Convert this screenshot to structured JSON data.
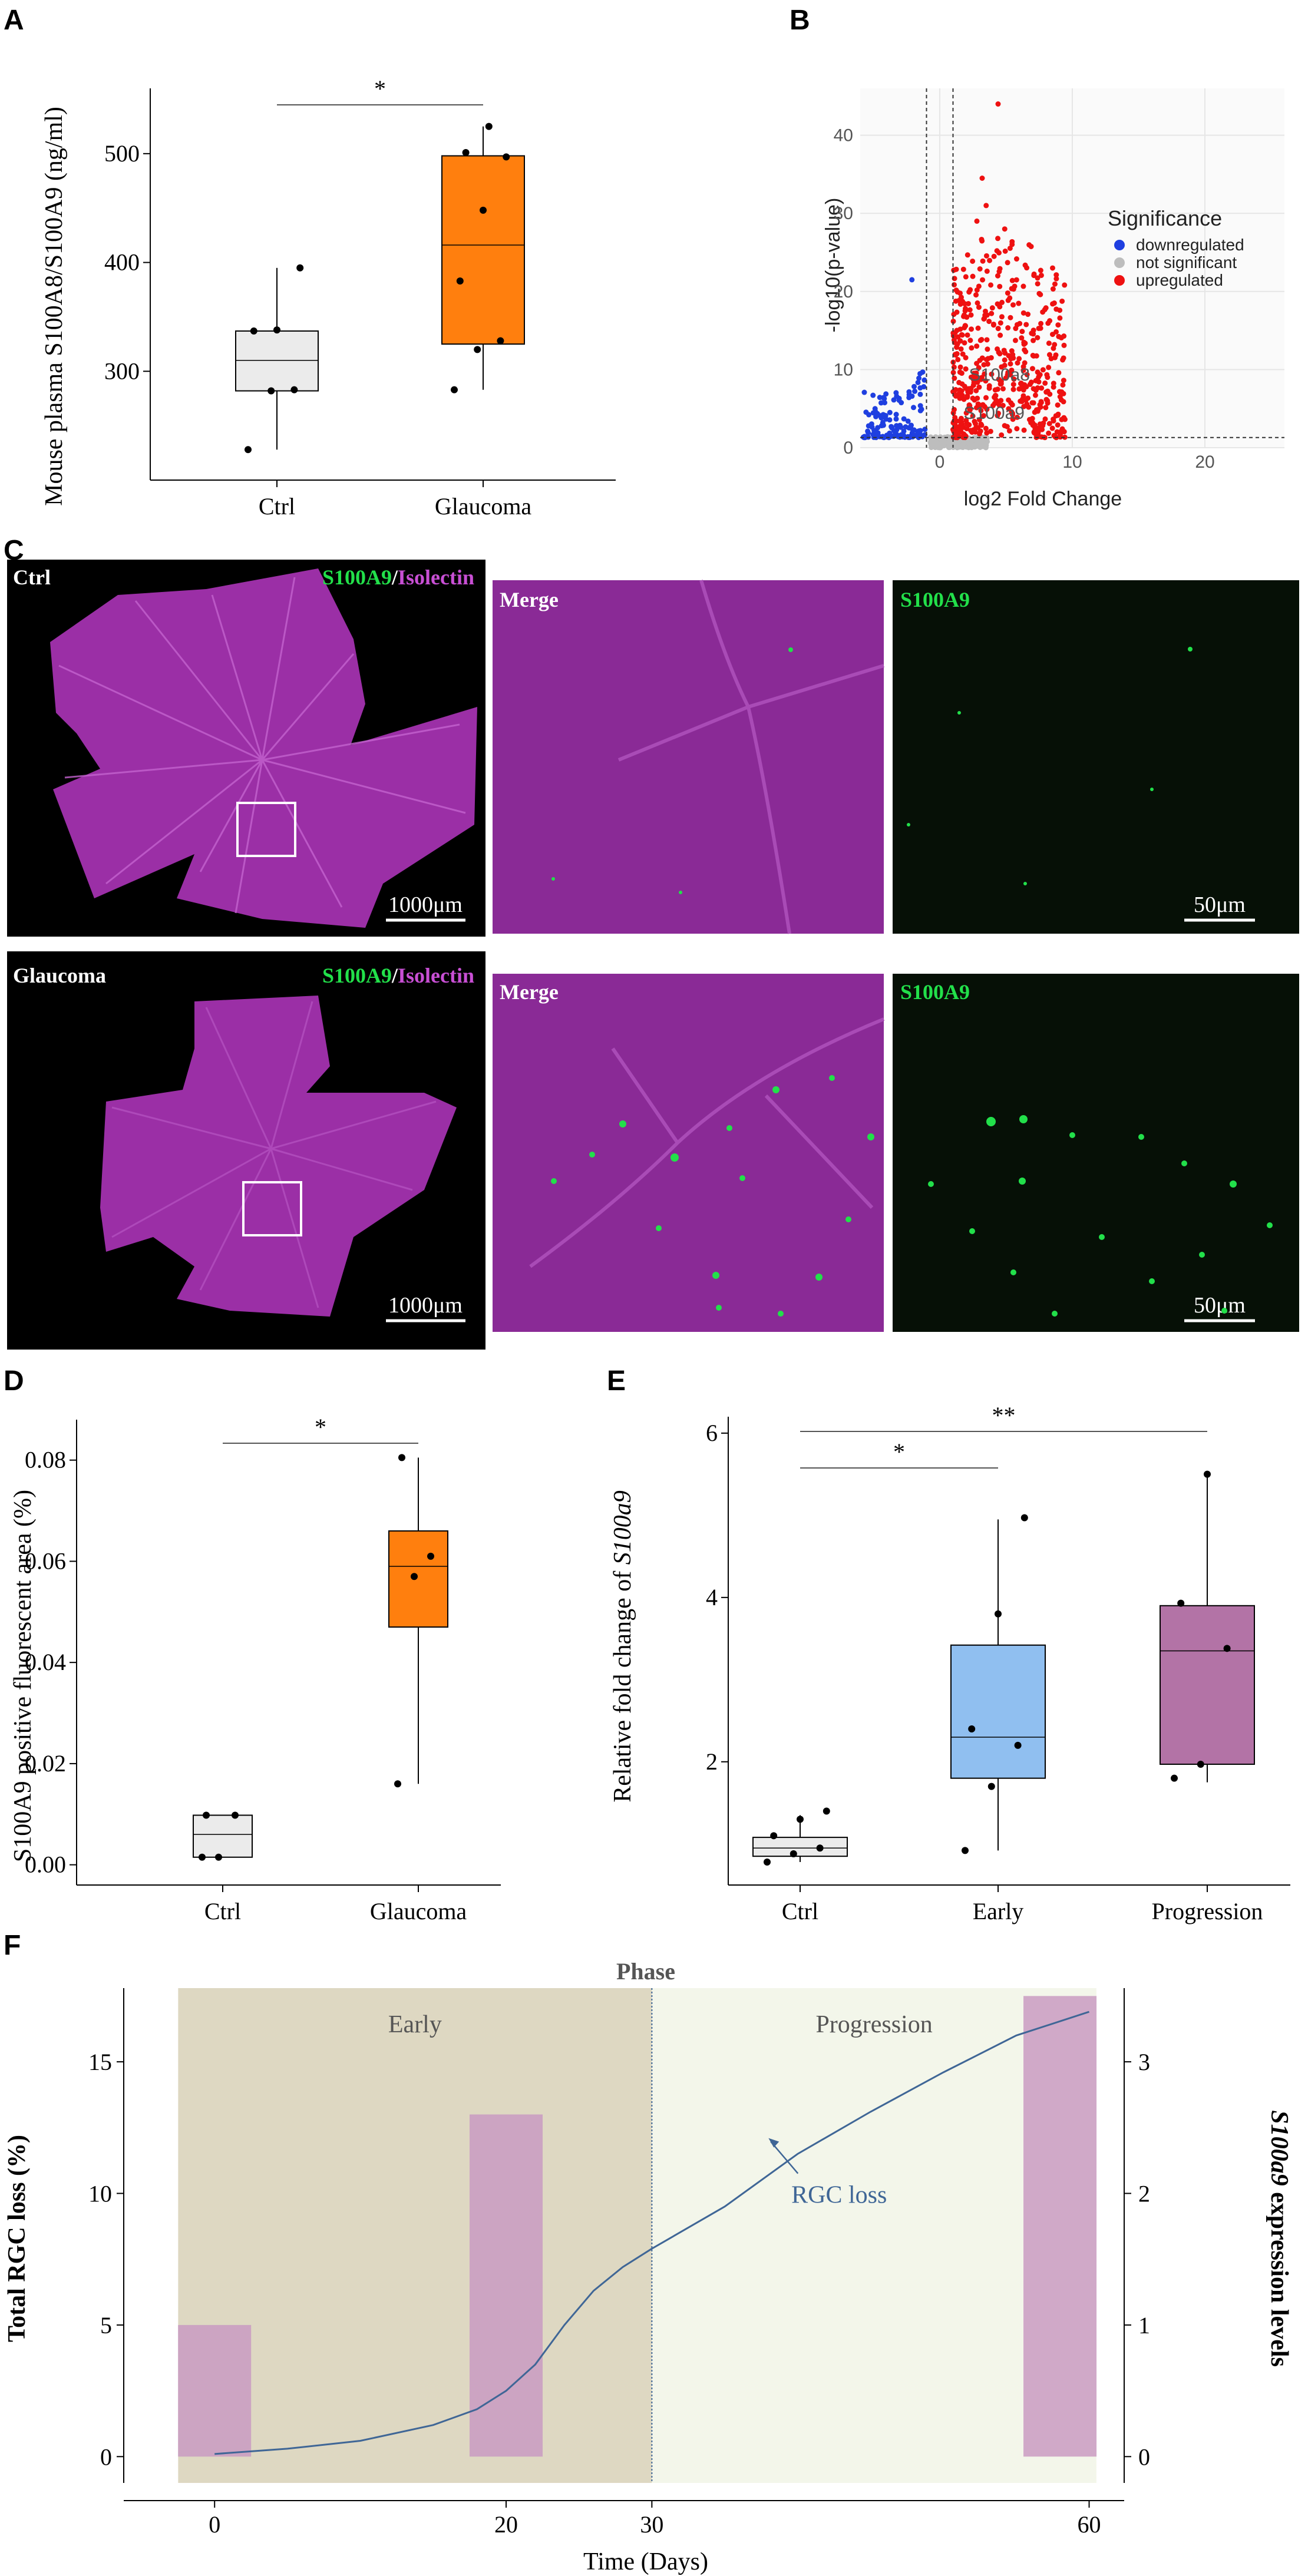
{
  "panel_labels": {
    "a": "A",
    "b": "B",
    "c": "C",
    "d": "D",
    "e": "E",
    "f": "F"
  },
  "panel_c": {
    "ctrl_label": "Ctrl",
    "glaucoma_label": "Glaucoma",
    "stain_s100a9": "S100A9",
    "stain_sep": "/",
    "stain_isolectin": "Isolectin",
    "merge": "Merge",
    "s100a9": "S100A9",
    "scale_big": "1000μm",
    "scale_small": "50μm",
    "colors": {
      "tissue": "#9b2fa6",
      "tissue_dark": "#7e1f88",
      "green": "#22e04a",
      "bg": "#000000",
      "green_bg": "#061006"
    }
  },
  "chart_data": [
    {
      "id": "A",
      "type": "box",
      "categories": [
        "Ctrl",
        "Glaucoma"
      ],
      "ylabel": "Mouse plasma S100A8/S100A9 (ng/ml)",
      "ylim": [
        200,
        560
      ],
      "yticks": [
        300,
        400,
        500
      ],
      "boxes": [
        {
          "category": "Ctrl",
          "min": 228,
          "q1": 282,
          "median": 310,
          "q3": 337,
          "max": 395,
          "fill": "#ebebeb",
          "points": [
            228,
            282,
            283,
            337,
            338,
            395
          ]
        },
        {
          "category": "Glaucoma",
          "min": 283,
          "q1": 325,
          "median": 416,
          "q3": 498,
          "max": 525,
          "fill": "#ff7f0e",
          "points": [
            283,
            320,
            328,
            383,
            448,
            497,
            501,
            525
          ]
        }
      ],
      "significance": [
        {
          "from": "Ctrl",
          "to": "Glaucoma",
          "label": "*"
        }
      ]
    },
    {
      "id": "B",
      "type": "scatter",
      "xlabel": "log2 Fold Change",
      "ylabel": "-log10(p-value)",
      "xlim": [
        -6,
        26
      ],
      "ylim": [
        0,
        46
      ],
      "xticks": [
        0,
        10,
        20
      ],
      "yticks": [
        0,
        10,
        20,
        30,
        40
      ],
      "vlines": [
        -1,
        1
      ],
      "hline": 1.3,
      "legend": {
        "title": "Significance",
        "entries": [
          {
            "label": "downregulated",
            "color": "#1f3fe0"
          },
          {
            "label": "not significant",
            "color": "#bdbdbd"
          },
          {
            "label": "upregulated",
            "color": "#ee1111"
          }
        ]
      },
      "annotations": [
        {
          "label": "S100a8",
          "x": 2.2,
          "y": 8.6
        },
        {
          "label": "S100a9",
          "x": 1.8,
          "y": 3.7
        }
      ]
    },
    {
      "id": "D",
      "type": "box",
      "categories": [
        "Ctrl",
        "Glaucoma"
      ],
      "ylabel": "S100A9 positive fluorescent area (%)",
      "ylim": [
        -0.004,
        0.088
      ],
      "yticks": [
        0.0,
        0.02,
        0.04,
        0.06,
        0.08
      ],
      "ytick_labels": [
        "0.00",
        "0.02",
        "0.04",
        "0.06",
        "0.08"
      ],
      "boxes": [
        {
          "category": "Ctrl",
          "min": 0.0015,
          "q1": 0.0015,
          "median": 0.006,
          "q3": 0.0098,
          "max": 0.0098,
          "fill": "#ebebeb",
          "points": [
            0.0015,
            0.0015,
            0.0098,
            0.0098
          ]
        },
        {
          "category": "Glaucoma",
          "min": 0.016,
          "q1": 0.047,
          "median": 0.059,
          "q3": 0.066,
          "max": 0.0805,
          "fill": "#ff7f0e",
          "points": [
            0.016,
            0.057,
            0.061,
            0.0805
          ]
        }
      ],
      "significance": [
        {
          "from": "Ctrl",
          "to": "Glaucoma",
          "label": "*"
        }
      ]
    },
    {
      "id": "E",
      "type": "box",
      "categories": [
        "Ctrl",
        "Early",
        "Progression"
      ],
      "ylabel_prefix": "Relative fold change of ",
      "ylabel_gene": "S100a9",
      "ylim": [
        0.5,
        6.2
      ],
      "yticks": [
        2,
        4,
        6
      ],
      "boxes": [
        {
          "category": "Ctrl",
          "min": 0.78,
          "q1": 0.85,
          "median": 0.95,
          "q3": 1.08,
          "max": 1.35,
          "fill": "#ebebeb",
          "points": [
            0.78,
            0.88,
            0.95,
            1.1,
            1.3,
            1.4
          ]
        },
        {
          "category": "Early",
          "min": 0.92,
          "q1": 1.8,
          "median": 2.3,
          "q3": 3.42,
          "max": 4.95,
          "fill": "#90bff0",
          "points": [
            0.92,
            1.7,
            2.2,
            2.4,
            3.8,
            4.97
          ]
        },
        {
          "category": "Progression",
          "min": 1.75,
          "q1": 1.97,
          "median": 3.35,
          "q3": 3.9,
          "max": 5.5,
          "fill": "#b373a6",
          "points": [
            1.8,
            1.97,
            3.38,
            3.93,
            5.5
          ]
        }
      ],
      "significance": [
        {
          "from": "Ctrl",
          "to": "Early",
          "label": "*"
        },
        {
          "from": "Ctrl",
          "to": "Progression",
          "label": "**"
        }
      ]
    },
    {
      "id": "F",
      "type": "line+bar",
      "title": "Phase",
      "xlabel": "Time (Days)",
      "ylabel_left": "Total RGC loss (%)",
      "ylabel_right_gene": "S100a9",
      "ylabel_right_suffix": " expression levels",
      "xlim": [
        -3,
        62
      ],
      "ylim_left": [
        -1,
        17.8
      ],
      "ylim_right": [
        -0.2,
        3.56
      ],
      "xticks": [
        0,
        20,
        30,
        60
      ],
      "yticks_left": [
        0,
        5,
        10,
        15
      ],
      "yticks_right": [
        0,
        1,
        2,
        3
      ],
      "phases": [
        {
          "label": "Early",
          "from": -2.5,
          "to": 30,
          "color": "#ded8c2"
        },
        {
          "label": "Progression",
          "from": 30,
          "to": 60.5,
          "color": "#f3f6ea"
        }
      ],
      "phase_divider": 30,
      "bars": [
        {
          "x": 0,
          "value": 1.0
        },
        {
          "x": 20,
          "value": 2.6
        },
        {
          "x": 58,
          "value": 3.5
        }
      ],
      "bar_color": "#c99bc2",
      "line": {
        "name": "RGC loss",
        "color": "#3f6696",
        "x": [
          0,
          5,
          10,
          15,
          18,
          20,
          22,
          24,
          26,
          28,
          30,
          35,
          40,
          45,
          50,
          55,
          60
        ],
        "y": [
          0.1,
          0.3,
          0.6,
          1.2,
          1.8,
          2.5,
          3.5,
          5.0,
          6.3,
          7.2,
          7.9,
          9.5,
          11.5,
          13.1,
          14.6,
          16.0,
          16.9
        ]
      },
      "line_annotation": {
        "label": "RGC loss",
        "x": 38,
        "y": 12.1
      }
    }
  ]
}
